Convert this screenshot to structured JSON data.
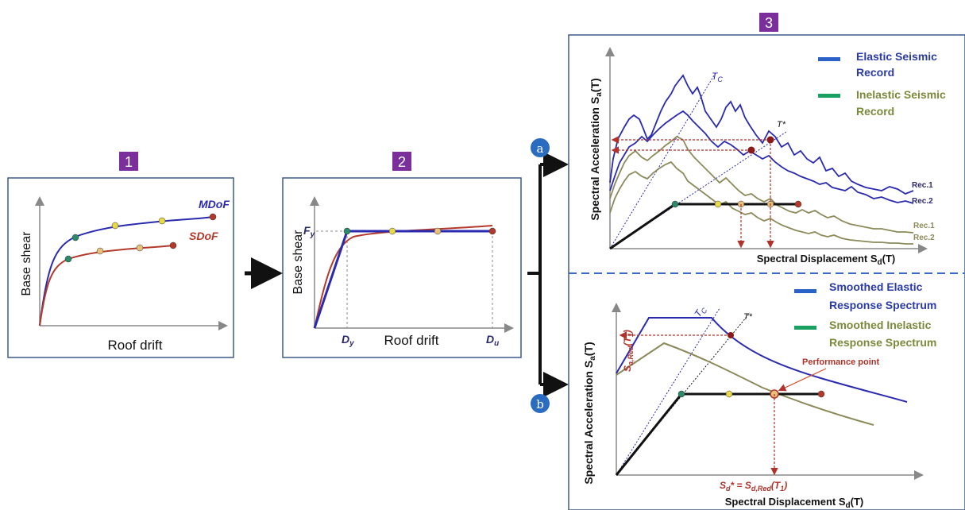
{
  "steps": {
    "step1": "1",
    "step2": "2",
    "step3": "3",
    "a": "a",
    "b": "b"
  },
  "panel1": {
    "xlabel": "Roof drift",
    "ylabel": "Base shear",
    "mdof": "MDoF",
    "sdof": "SDoF"
  },
  "panel2": {
    "xlabel": "Roof drift",
    "ylabel": "Base shear",
    "fy": "F",
    "fy_sub": "y",
    "dy": "D",
    "dy_sub": "y",
    "du": "D",
    "du_sub": "u"
  },
  "panel3a": {
    "ylabel": "Spectral Acceleration S",
    "ylabel_sub": "a",
    "ylabel_end": "(T)",
    "xlabel": "Spectral Displacement S",
    "xlabel_sub": "d",
    "xlabel_end": "(T)",
    "legend_elastic_1": "Elastic Seismic",
    "legend_elastic_2": "Record",
    "legend_inelastic_1": "Inelastic Seismic",
    "legend_inelastic_2": "Record",
    "tc": "T",
    "tc_sub": "C",
    "tstar": "T*",
    "rec1_blue": "Rec.1",
    "rec2_blue": "Rec.2",
    "rec1_green": "Rec.1",
    "rec2_green": "Rec.2"
  },
  "panel3b": {
    "ylabel": "Spectral Acceleration S",
    "ylabel_sub": "a",
    "ylabel_end": "(T)",
    "xlabel": "Spectral Displacement S",
    "xlabel_sub": "d",
    "xlabel_end": "(T)",
    "legend_elastic_1": "Smoothed Elastic",
    "legend_elastic_2": "Response  Spectrum",
    "legend_inelastic_1": "Smoothed Inelastic",
    "legend_inelastic_2": "Response  Spectrum",
    "tc": "T",
    "tc_sub": "C",
    "tstar": "T*",
    "sa_label": "S",
    "sa_sub": "a,Red",
    "sa_end": "(T",
    "sa_end_sub": "1",
    "sa_close": ")",
    "performance_point": "Performance point",
    "sd_eq_a": "S",
    "sd_eq_a_sub": "d",
    "sd_eq_b": "* = S",
    "sd_eq_b_sub": "d,Red",
    "sd_eq_c": "(T",
    "sd_eq_c_sub": "1",
    "sd_eq_d": ")"
  },
  "colors": {
    "blue": "#2a2ab0",
    "red": "#b33a2a",
    "olive": "#8c8a5a",
    "dashed_red": "#b0322a",
    "badge": "#7a2f9c",
    "circle": "#2a6cc0",
    "frame": "#3a5a8a",
    "sep": "#3a6ac8"
  }
}
